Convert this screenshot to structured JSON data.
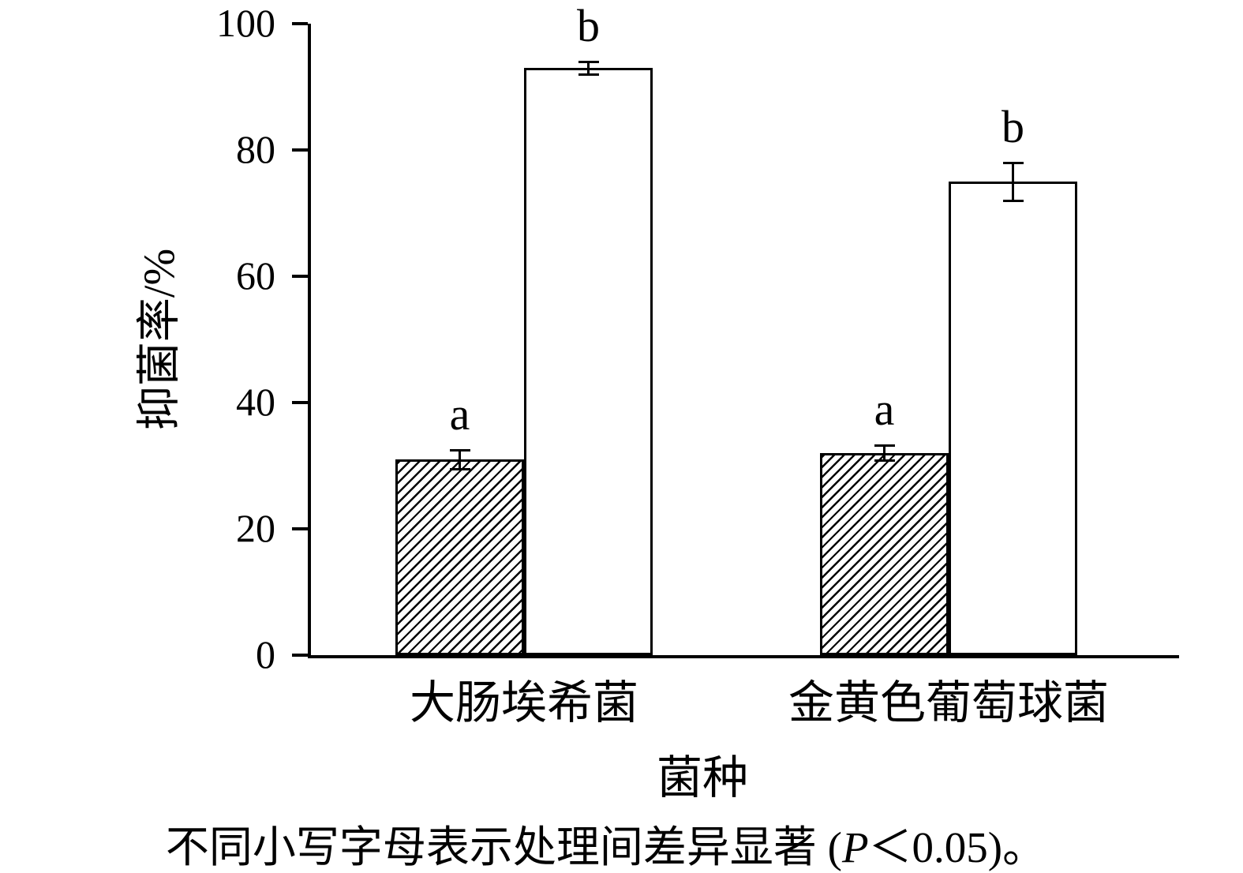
{
  "chart_data": {
    "type": "bar",
    "title": "",
    "xlabel": "菌种",
    "ylabel": "抑菌率/%",
    "categories": [
      "大肠埃希菌",
      "金黄色葡萄球菌"
    ],
    "series": [
      {
        "name": "hatched-bars",
        "fill": "hatch",
        "values": [
          31,
          32
        ],
        "errors": [
          1.5,
          1.2
        ],
        "sig_labels": [
          "a",
          "a"
        ]
      },
      {
        "name": "open-bars",
        "fill": "white",
        "values": [
          93,
          75
        ],
        "errors": [
          1,
          3
        ],
        "sig_labels": [
          "b",
          "b"
        ]
      }
    ],
    "ylim": [
      0,
      100
    ],
    "yticks": [
      0,
      20,
      40,
      60,
      80,
      100
    ],
    "grid": "off",
    "legend": "none",
    "bar_color": "#ffffff",
    "axis_color": "#000000"
  },
  "caption": {
    "prefix": "不同小写字母表示处理间差异显著 (",
    "italic": "P",
    "suffix": "＜0.05)。"
  }
}
